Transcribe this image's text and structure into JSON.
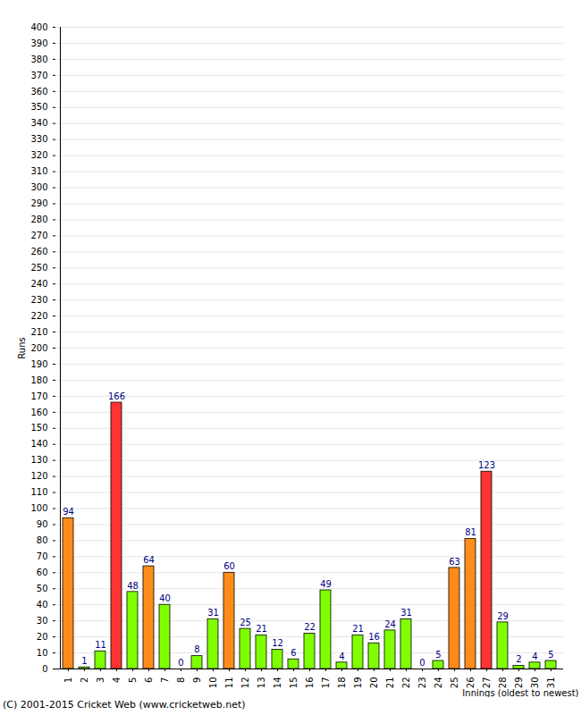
{
  "chart_data": {
    "type": "bar",
    "categories": [
      "1",
      "2",
      "3",
      "4",
      "5",
      "6",
      "7",
      "8",
      "9",
      "10",
      "11",
      "12",
      "13",
      "14",
      "15",
      "16",
      "17",
      "18",
      "19",
      "20",
      "21",
      "22",
      "23",
      "24",
      "25",
      "26",
      "27",
      "28",
      "29",
      "30",
      "31"
    ],
    "values": [
      94,
      1,
      11,
      166,
      48,
      64,
      40,
      0,
      8,
      31,
      60,
      25,
      21,
      12,
      6,
      22,
      49,
      4,
      21,
      16,
      24,
      31,
      0,
      5,
      63,
      81,
      123,
      29,
      2,
      4,
      5
    ],
    "colors": [
      "#ff8c1a",
      "#80ff00",
      "#80ff00",
      "#ff3333",
      "#80ff00",
      "#ff8c1a",
      "#80ff00",
      "#80ff00",
      "#80ff00",
      "#80ff00",
      "#ff8c1a",
      "#80ff00",
      "#80ff00",
      "#80ff00",
      "#80ff00",
      "#80ff00",
      "#80ff00",
      "#80ff00",
      "#80ff00",
      "#80ff00",
      "#80ff00",
      "#80ff00",
      "#80ff00",
      "#80ff00",
      "#ff8c1a",
      "#ff8c1a",
      "#ff3333",
      "#80ff00",
      "#80ff00",
      "#80ff00",
      "#80ff00"
    ],
    "x_label": "Innings (oldest to newest)",
    "y_label": "Runs",
    "caption": "(C) 2001-2015 Cricket Web (www.cricketweb.net)",
    "ylim": [
      0,
      400
    ],
    "yticks": [
      0,
      10,
      20,
      30,
      40,
      50,
      60,
      70,
      80,
      90,
      100,
      110,
      120,
      130,
      140,
      150,
      160,
      170,
      180,
      190,
      200,
      210,
      220,
      230,
      240,
      250,
      260,
      270,
      280,
      290,
      300,
      310,
      320,
      330,
      340,
      350,
      360,
      370,
      380,
      390,
      400
    ],
    "grid": true,
    "data_labels": true
  }
}
